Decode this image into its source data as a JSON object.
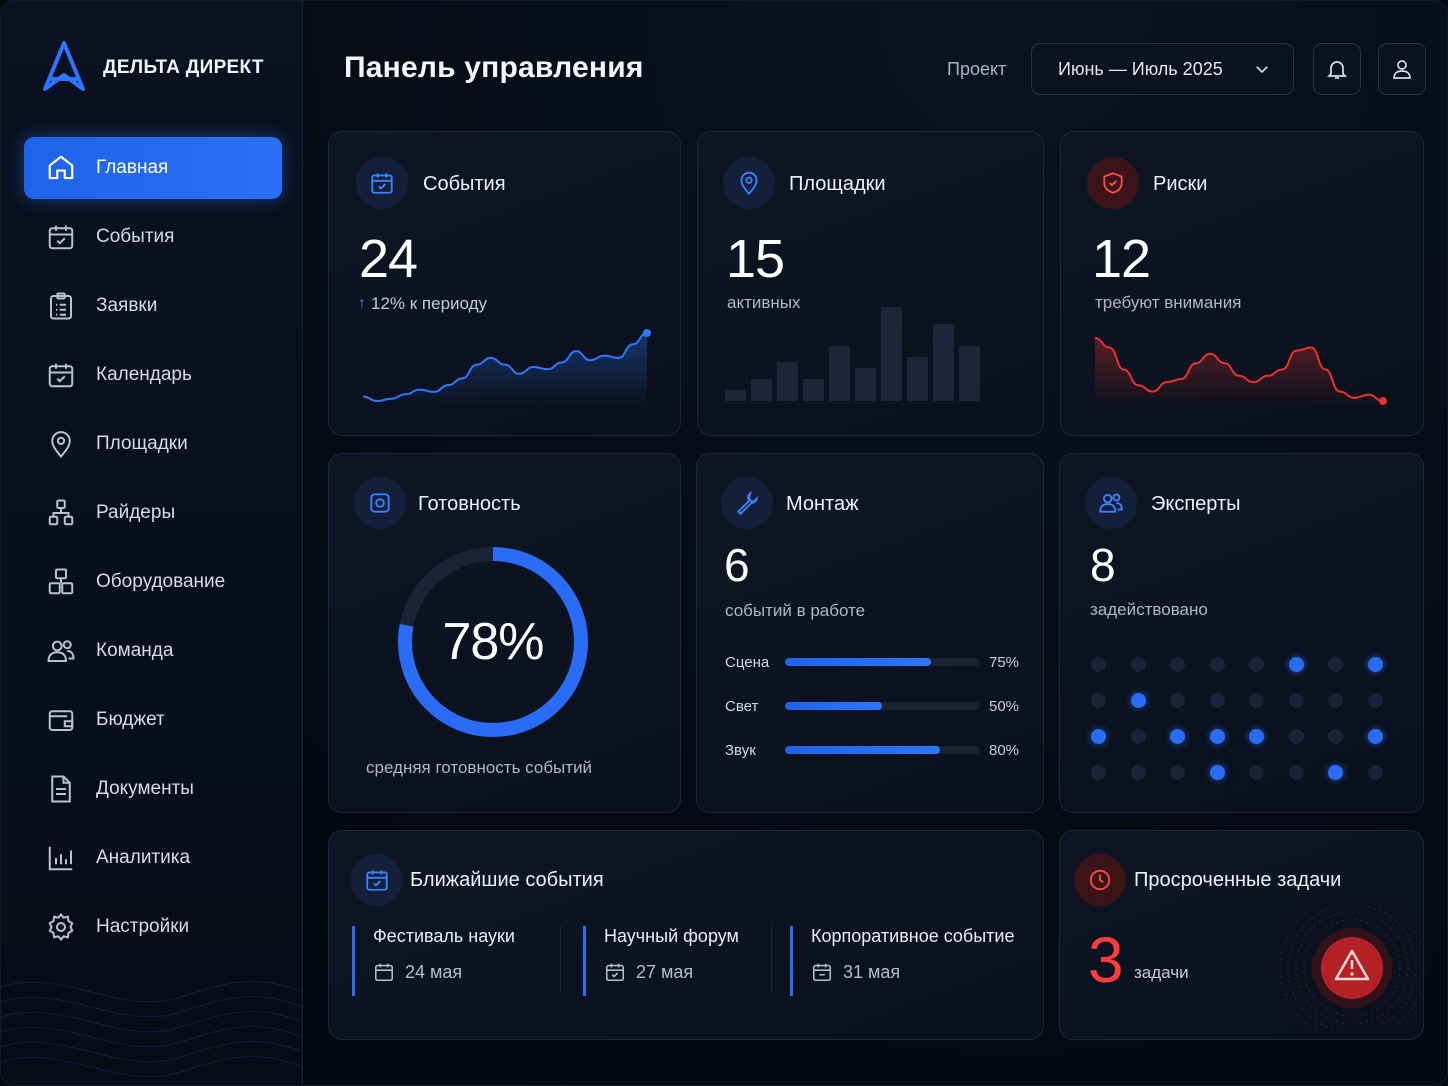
{
  "app": {
    "brand": "ДЕЛЬТА ДИРЕКТ"
  },
  "sidebar": {
    "items": [
      {
        "label": "Главная",
        "icon": "home-icon",
        "active": true
      },
      {
        "label": "События",
        "icon": "calendar-check-icon"
      },
      {
        "label": "Заявки",
        "icon": "clipboard-list-icon"
      },
      {
        "label": "Календарь",
        "icon": "calendar-icon"
      },
      {
        "label": "Площадки",
        "icon": "map-pin-icon"
      },
      {
        "label": "Райдеры",
        "icon": "network-icon"
      },
      {
        "label": "Оборудование",
        "icon": "boxes-icon"
      },
      {
        "label": "Команда",
        "icon": "users-icon"
      },
      {
        "label": "Бюджет",
        "icon": "wallet-icon"
      },
      {
        "label": "Документы",
        "icon": "document-icon"
      },
      {
        "label": "Аналитика",
        "icon": "bar-chart-icon"
      },
      {
        "label": "Настройки",
        "icon": "gear-icon"
      }
    ]
  },
  "header": {
    "title": "Панель управления",
    "project_label": "Проект",
    "period": "Июнь — Июль 2025"
  },
  "cards": {
    "events": {
      "title": "События",
      "value": "24",
      "trend": "12% к периоду",
      "sparkline": [
        12,
        8,
        10,
        14,
        18,
        16,
        22,
        28,
        40,
        46,
        40,
        32,
        38,
        36,
        42,
        52,
        44,
        48,
        46,
        58,
        68
      ]
    },
    "venues": {
      "title": "Площадки",
      "value": "15",
      "caption": "активных",
      "bars": [
        2,
        4,
        7,
        4,
        10,
        6,
        17,
        8,
        14,
        10
      ]
    },
    "risks": {
      "title": "Риски",
      "value": "12",
      "caption": "требуют внимания",
      "sparkline": [
        50,
        44,
        30,
        20,
        16,
        22,
        24,
        34,
        40,
        34,
        26,
        22,
        26,
        30,
        42,
        44,
        30,
        16,
        12,
        14,
        10
      ]
    },
    "readiness": {
      "title": "Готовность",
      "value": "78%",
      "percent": 78,
      "caption": "средняя готовность событий"
    },
    "montage": {
      "title": "Монтаж",
      "value": "6",
      "caption": "событий в работе",
      "rows": [
        {
          "label": "Сцена",
          "pct": 75,
          "pct_label": "75%"
        },
        {
          "label": "Свет",
          "pct": 50,
          "pct_label": "50%"
        },
        {
          "label": "Звук",
          "pct": 80,
          "pct_label": "80%"
        }
      ]
    },
    "experts": {
      "title": "Эксперты",
      "value": "8",
      "caption": "задействовано",
      "dots": [
        0,
        0,
        0,
        0,
        0,
        1,
        0,
        1,
        0,
        1,
        0,
        0,
        0,
        0,
        0,
        0,
        1,
        0,
        1,
        1,
        1,
        0,
        0,
        1,
        0,
        0,
        0,
        1,
        0,
        0,
        1,
        0
      ]
    },
    "upcoming": {
      "title": "Ближайшие события",
      "items": [
        {
          "name": "Фестиваль науки",
          "date": "24 мая"
        },
        {
          "name": "Научный форум",
          "date": "27 мая"
        },
        {
          "name": "Корпоративное событие",
          "date": "31 мая"
        }
      ]
    },
    "overdue": {
      "title": "Просроченные задачи",
      "value": "3",
      "caption": "задачи"
    }
  },
  "colors": {
    "accent": "#2a6cf5",
    "danger": "#ff3b3b",
    "background": "#060a13"
  }
}
